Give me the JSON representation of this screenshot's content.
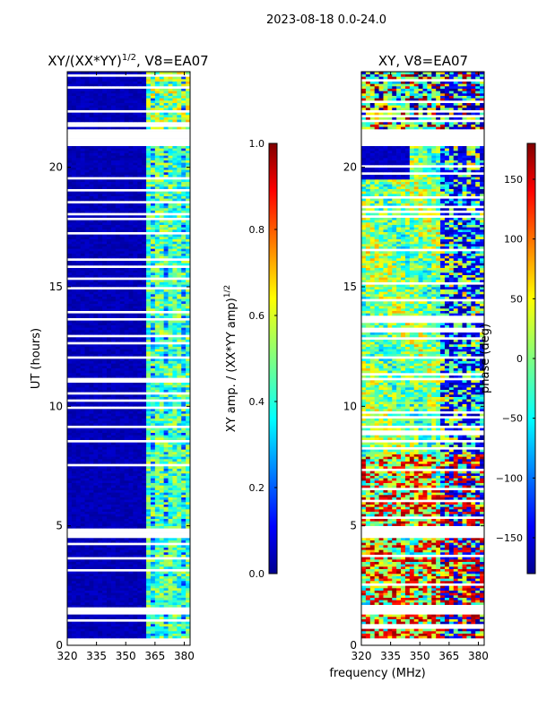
{
  "page_title": "2023-08-18 0.0-24.0",
  "xlabel": "frequency (MHz)",
  "colors": {
    "background": "#ffffff",
    "band_low": "#00008f",
    "gap": "#ffffff",
    "axis": "#000000"
  },
  "chart_data": [
    {
      "type": "heatmap",
      "title_main": "XY/(XX*YY)",
      "title_exp": "1/2",
      "title_tail": ", V8=EA07",
      "ylabel": "UT (hours)",
      "xlim": [
        320,
        383
      ],
      "ylim": [
        0,
        24
      ],
      "x_ticks": [
        320,
        335,
        350,
        365,
        380
      ],
      "x_tick_labels": [
        "320",
        "335",
        "350",
        "365",
        "380"
      ],
      "y_ticks": [
        0,
        5,
        10,
        15,
        20
      ],
      "y_tick_labels": [
        "0",
        "5",
        "10",
        "15",
        "20"
      ],
      "colorbar": {
        "label_main": "XY amp. / (XX*YY amp)",
        "label_exp": "1/2",
        "range": [
          0.0,
          1.0
        ],
        "ticks": [
          0.0,
          0.2,
          0.4,
          0.6,
          0.8,
          1.0
        ],
        "tick_labels": [
          "0.0",
          "0.2",
          "0.4",
          "0.6",
          "0.8",
          "1.0"
        ]
      },
      "active_band_mhz": [
        360,
        382
      ],
      "background_value": 0.03,
      "active_value_range": [
        0.1,
        0.6
      ],
      "gaps_hours": [
        [
          0.0,
          0.25
        ],
        [
          1.3,
          1.45
        ],
        [
          4.5,
          4.85
        ],
        [
          20.95,
          21.55
        ],
        [
          22.3,
          22.4
        ]
      ]
    },
    {
      "type": "heatmap",
      "title_main": "XY, V8=EA07",
      "xlim": [
        320,
        383
      ],
      "ylim": [
        0,
        24
      ],
      "x_ticks": [
        320,
        335,
        350,
        365,
        380
      ],
      "x_tick_labels": [
        "320",
        "335",
        "350",
        "365",
        "380"
      ],
      "y_ticks": [
        0,
        5,
        10,
        15,
        20
      ],
      "y_tick_labels": [
        "0",
        "5",
        "10",
        "15",
        "20"
      ],
      "colorbar": {
        "label": "phase (deg)",
        "range": [
          -180,
          180
        ],
        "ticks": [
          -150,
          -100,
          -50,
          0,
          50,
          100,
          150
        ],
        "tick_labels": [
          "−150",
          "−100",
          "−50",
          "0",
          "50",
          "100",
          "150"
        ]
      },
      "phase_value_range_deg": [
        -180,
        180
      ],
      "gaps_hours": [
        [
          0.0,
          0.25
        ],
        [
          1.3,
          1.45
        ],
        [
          4.5,
          4.85
        ],
        [
          20.95,
          21.55
        ],
        [
          22.3,
          22.4
        ]
      ]
    }
  ]
}
